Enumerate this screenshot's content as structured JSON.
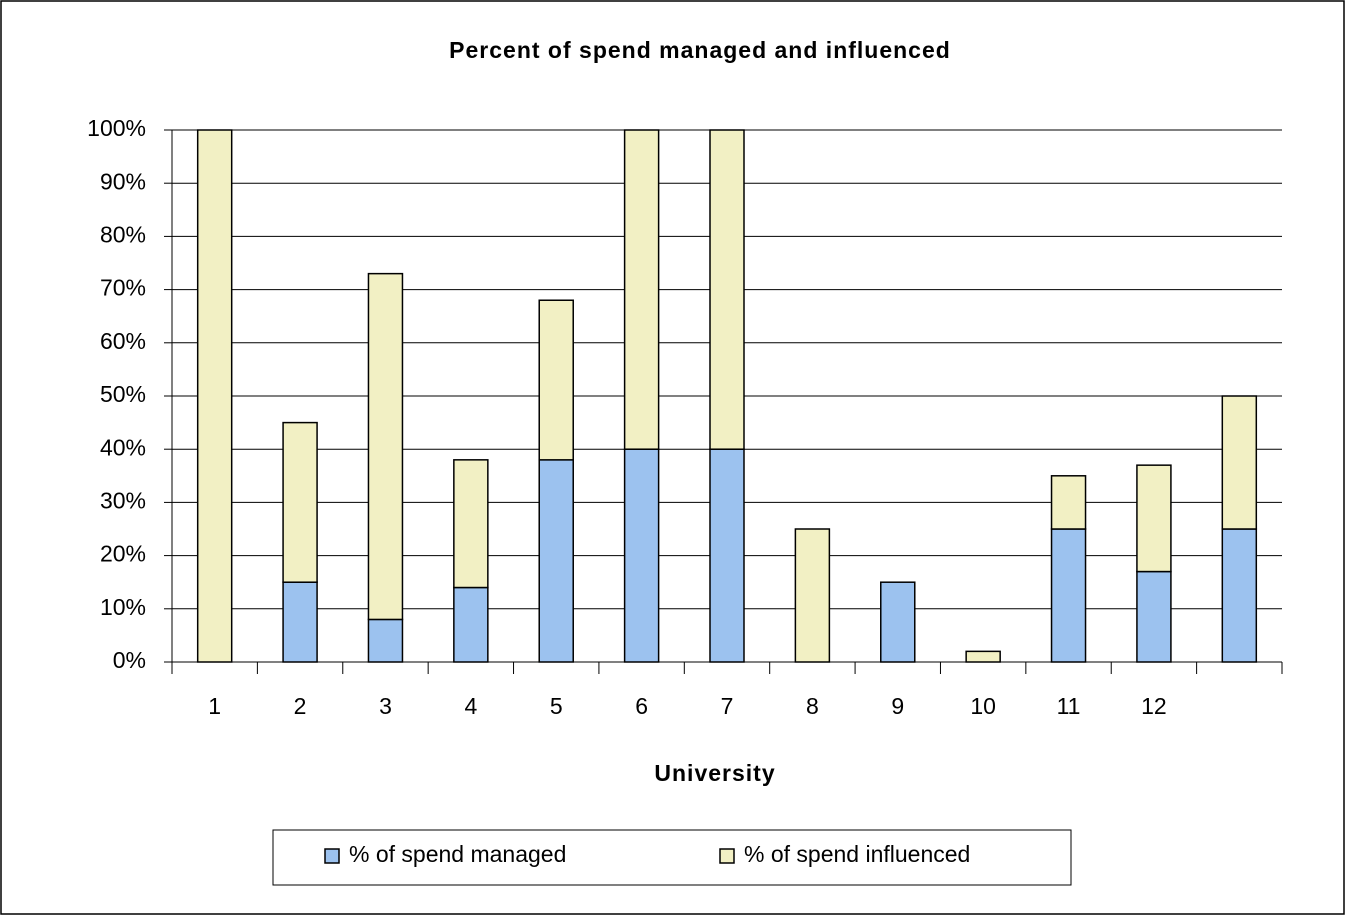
{
  "chart_data": {
    "type": "stacked_bar",
    "title": "Percent of spend managed and influenced",
    "x_label": "University",
    "categories": [
      "1",
      "2",
      "3",
      "4",
      "5",
      "6",
      "7",
      "8",
      "9",
      "10",
      "11",
      "12",
      null
    ],
    "series": [
      {
        "name": "% of spend managed",
        "color": "#9cc2ef",
        "values": [
          0,
          15,
          8,
          14,
          38,
          40,
          40,
          0,
          15,
          0,
          25,
          17,
          25
        ]
      },
      {
        "name": "% of spend influenced",
        "color": "#f2f0c4",
        "values": [
          100,
          30,
          65,
          24,
          30,
          60,
          60,
          25,
          0,
          2,
          10,
          20,
          25
        ]
      }
    ],
    "ylim": [
      0,
      100
    ],
    "yticks": [
      {
        "value": 0,
        "label": "0%"
      },
      {
        "value": 10,
        "label": "10%"
      },
      {
        "value": 20,
        "label": "20%"
      },
      {
        "value": 30,
        "label": "30%"
      },
      {
        "value": 40,
        "label": "40%"
      },
      {
        "value": 50,
        "label": "50%"
      },
      {
        "value": 60,
        "label": "60%"
      },
      {
        "value": 70,
        "label": "70%"
      },
      {
        "value": 80,
        "label": "80%"
      },
      {
        "value": 90,
        "label": "90%"
      },
      {
        "value": 100,
        "label": "100%"
      }
    ],
    "grid": true,
    "legend": "bottom"
  }
}
